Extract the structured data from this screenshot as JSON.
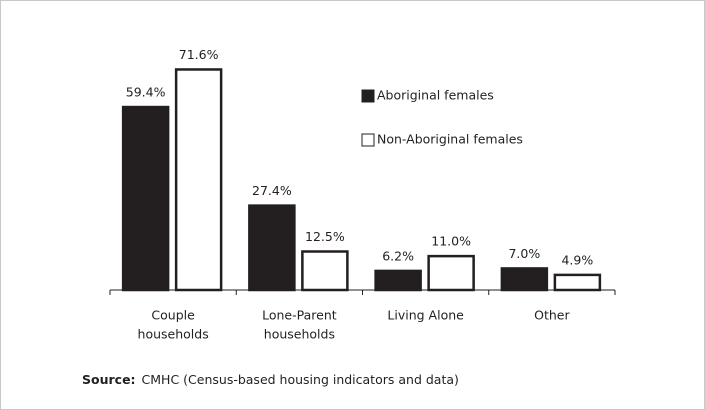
{
  "chart_data": {
    "type": "bar",
    "categories": [
      [
        "Couple",
        "households"
      ],
      [
        "Lone-Parent",
        "households"
      ],
      [
        "Living Alone"
      ],
      [
        "Other"
      ]
    ],
    "series": [
      {
        "name": "Aboriginal females",
        "color": "#231f20",
        "values": [
          59.4,
          27.4,
          6.2,
          7.0
        ],
        "value_labels": [
          "59.4%",
          "27.4%",
          "6.2%",
          "7.0%"
        ]
      },
      {
        "name": "Non-Aboriginal females",
        "color": "#ffffff",
        "values": [
          71.6,
          12.5,
          11.0,
          4.9
        ],
        "value_labels": [
          "71.6%",
          "12.5%",
          "11.0%",
          "4.9%"
        ]
      }
    ],
    "ylim": [
      0,
      75
    ],
    "legend": "top-center",
    "source_label": "Source:",
    "source": "CMHC (Census-based housing indicators and data)"
  }
}
